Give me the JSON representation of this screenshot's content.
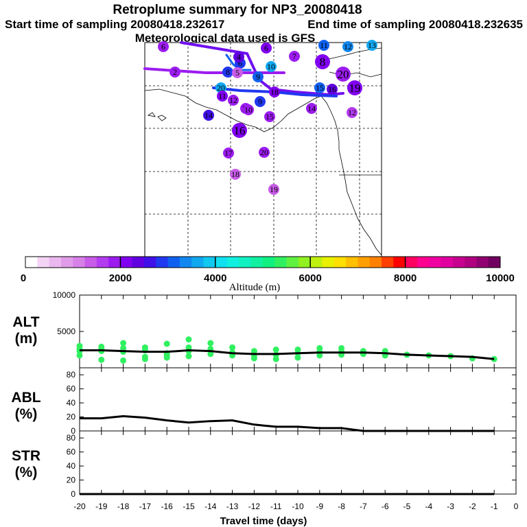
{
  "header": {
    "title": "Retroplume summary for NP3_20080418",
    "start_label": "Start time of sampling 20080418.232617",
    "end_label": "End time of sampling 20080418.232635",
    "met_label": "Meteorological data used is GFS"
  },
  "colorbar": {
    "label": "Altitude (m)",
    "ticks": [
      "0",
      "2000",
      "4000",
      "6000",
      "8000",
      "10000"
    ],
    "colors": [
      "#ffffff",
      "#f4d4f4",
      "#eab8ee",
      "#e09ce8",
      "#d680e8",
      "#c85ce8",
      "#b43cf0",
      "#9c1cf0",
      "#8000f0",
      "#6000e0",
      "#4010e8",
      "#2038f0",
      "#1060f0",
      "#1088f0",
      "#10a8f0",
      "#10c8f0",
      "#10e0f0",
      "#10f0e0",
      "#10f0c0",
      "#10f0a0",
      "#10f080",
      "#30f060",
      "#60f040",
      "#90f020",
      "#c0f010",
      "#e8f000",
      "#ffe000",
      "#ffc000",
      "#ffa000",
      "#ff8000",
      "#ff4000",
      "#ff0000",
      "#ff0060",
      "#ff0090",
      "#f000a0",
      "#e000a0",
      "#c80090",
      "#b00080",
      "#900070",
      "#700060"
    ]
  },
  "map": {
    "markers": [
      {
        "label": "6",
        "color": "#9c1cf0",
        "big": false
      },
      {
        "label": "6",
        "color": "#8000f0",
        "big": false
      },
      {
        "label": "6",
        "color": "#2038f0",
        "big": false
      },
      {
        "label": "7",
        "color": "#9c1cf0",
        "big": false
      },
      {
        "label": "8",
        "color": "#8000f0",
        "big": true
      },
      {
        "label": "12",
        "color": "#1088f0",
        "big": false
      },
      {
        "label": "13",
        "color": "#10a8f0",
        "big": false
      },
      {
        "label": "11",
        "color": "#1060f0",
        "big": false
      },
      {
        "label": "2",
        "color": "#9c1cf0",
        "big": false
      },
      {
        "label": "4",
        "color": "#6000e0",
        "big": false
      },
      {
        "label": "8",
        "color": "#2038f0",
        "big": false
      },
      {
        "label": "9",
        "color": "#1060f0",
        "big": false
      },
      {
        "label": "10",
        "color": "#10a8f0",
        "big": false
      },
      {
        "label": "5",
        "color": "#c85ce8",
        "big": false
      },
      {
        "label": "20",
        "color": "#9c1cf0",
        "big": true
      },
      {
        "label": "20",
        "color": "#10a8f0",
        "big": false
      },
      {
        "label": "19",
        "color": "#8000f0",
        "big": true
      },
      {
        "label": "16",
        "color": "#6000e0",
        "big": false
      },
      {
        "label": "18",
        "color": "#8000f0",
        "big": false
      },
      {
        "label": "15",
        "color": "#1060f0",
        "big": false
      },
      {
        "label": "11",
        "color": "#8000f0",
        "big": false
      },
      {
        "label": "12",
        "color": "#9c1cf0",
        "big": false
      },
      {
        "label": "9",
        "color": "#2038f0",
        "big": false
      },
      {
        "label": "13",
        "color": "#9c1cf0",
        "big": false
      },
      {
        "label": "10",
        "color": "#9c1cf0",
        "big": false
      },
      {
        "label": "15",
        "color": "#9c1cf0",
        "big": false
      },
      {
        "label": "14",
        "color": "#9c1cf0",
        "big": false
      },
      {
        "label": "12",
        "color": "#b43cf0",
        "big": false
      },
      {
        "label": "16",
        "color": "#8000f0",
        "big": true
      },
      {
        "label": "14",
        "color": "#4010e8",
        "big": false
      },
      {
        "label": "17",
        "color": "#9c1cf0",
        "big": false
      },
      {
        "label": "20",
        "color": "#9c1cf0",
        "big": false
      },
      {
        "label": "18",
        "color": "#c85ce8",
        "big": false
      },
      {
        "label": "19",
        "color": "#c85ce8",
        "big": false
      }
    ]
  },
  "chart_data": [
    {
      "type": "scatter",
      "name": "ALT",
      "ylabel": "ALT\n(m)",
      "ylim": [
        0,
        10000
      ],
      "yticks": [
        5000,
        10000
      ],
      "xlim": [
        -20,
        0
      ],
      "grid": false,
      "marker_color": "#30f060",
      "median_line": {
        "x": [
          -20,
          -19,
          -18,
          -17,
          -16,
          -15,
          -14,
          -13,
          -12,
          -11,
          -10,
          -9,
          -8,
          -7,
          -6,
          -5,
          -4,
          -3,
          -2,
          -1
        ],
        "y": [
          2400,
          2400,
          2300,
          2200,
          2200,
          2400,
          2300,
          2000,
          1900,
          1900,
          2000,
          2100,
          2100,
          2100,
          2000,
          1800,
          1700,
          1600,
          1500,
          1200
        ]
      },
      "points": {
        "x": [
          -20,
          -20,
          -20,
          -20,
          -19,
          -19,
          -19,
          -19,
          -18,
          -18,
          -18,
          -18,
          -17,
          -17,
          -17,
          -17,
          -16,
          -16,
          -16,
          -16,
          -15,
          -15,
          -15,
          -15,
          -14,
          -14,
          -14,
          -13,
          -13,
          -13,
          -12,
          -12,
          -12,
          -11,
          -11,
          -11,
          -10,
          -10,
          -10,
          -9,
          -9,
          -9,
          -8,
          -8,
          -8,
          -7,
          -7,
          -6,
          -6,
          -5,
          -4,
          -3,
          -2,
          -1
        ],
        "y": [
          3000,
          2300,
          1700,
          2600,
          2900,
          2300,
          1100,
          2600,
          3400,
          2200,
          1000,
          2700,
          2800,
          1500,
          1200,
          2400,
          3300,
          2000,
          1700,
          1400,
          3900,
          2300,
          1600,
          2800,
          3400,
          2600,
          1900,
          2800,
          2100,
          1700,
          2300,
          1700,
          1300,
          2500,
          1800,
          1200,
          2500,
          2000,
          1400,
          2700,
          2200,
          1700,
          2700,
          2200,
          1800,
          2300,
          1900,
          2300,
          1700,
          1800,
          1700,
          1600,
          1300,
          1200
        ]
      },
      "title": ""
    },
    {
      "type": "line",
      "name": "ABL",
      "ylabel": "ABL\n(%)",
      "ylim": [
        0,
        90
      ],
      "yticks": [
        0,
        20,
        40,
        60,
        80
      ],
      "xlim": [
        -20,
        0
      ],
      "x": [
        -20,
        -19,
        -18,
        -17,
        -16,
        -15,
        -14,
        -13,
        -12,
        -11,
        -10,
        -9,
        -8,
        -7,
        -6,
        -5,
        -4,
        -3,
        -2,
        -1
      ],
      "y": [
        18,
        18,
        21,
        19,
        15,
        12,
        14,
        15,
        9,
        6,
        6,
        4,
        4,
        0,
        0,
        0,
        0,
        0,
        0,
        0
      ],
      "title": ""
    },
    {
      "type": "line",
      "name": "STR",
      "ylabel": "STR\n(%)",
      "ylim": [
        0,
        90
      ],
      "yticks": [
        0,
        20,
        40,
        60,
        80
      ],
      "xlim": [
        -20,
        0
      ],
      "x": [
        -20,
        -19,
        -18,
        -17,
        -16,
        -15,
        -14,
        -13,
        -12,
        -11,
        -10,
        -9,
        -8,
        -7,
        -6,
        -5,
        -4,
        -3,
        -2,
        -1
      ],
      "y": [
        0,
        0,
        0,
        0,
        0,
        0,
        0,
        0,
        0,
        0,
        0,
        0,
        0,
        0,
        0,
        0,
        0,
        0,
        0,
        0
      ],
      "xlabel": "Travel time (days)",
      "xticks": [
        "-20",
        "-19",
        "-18",
        "-17",
        "-16",
        "-15",
        "-14",
        "-13",
        "-12",
        "-11",
        "-10",
        "-9",
        "-8",
        "-7",
        "-6",
        "-5",
        "-4",
        "-3",
        "-2",
        "-1",
        "0"
      ],
      "title": ""
    }
  ]
}
